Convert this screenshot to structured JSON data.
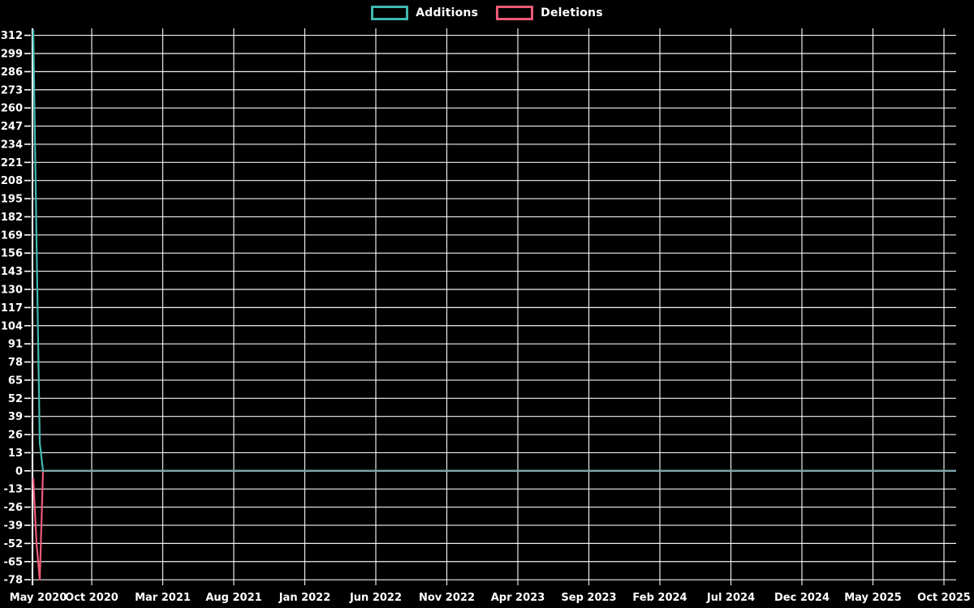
{
  "chart_data": {
    "type": "line",
    "title": "",
    "legend": [
      {
        "label": "Additions",
        "color": "#3FB8AF"
      },
      {
        "label": "Deletions",
        "color": "#ED5A77"
      }
    ],
    "x_axis": {
      "tick_labels": [
        "May 2020",
        "Oct 2020",
        "Mar 2021",
        "Aug 2021",
        "Jan 2022",
        "Jun 2022",
        "Nov 2022",
        "Apr 2023",
        "Sep 2023",
        "Feb 2024",
        "Jul 2024",
        "Dec 2024",
        "May 2025",
        "Oct 2025"
      ],
      "tick_interval_months": 5,
      "total_weeks": 285
    },
    "y_axis": {
      "tick_labels": [
        312,
        299,
        286,
        273,
        260,
        247,
        234,
        221,
        208,
        195,
        182,
        169,
        156,
        143,
        130,
        117,
        104,
        91,
        78,
        65,
        52,
        39,
        26,
        13,
        0,
        -13,
        -26,
        -39,
        -52,
        -65,
        -78
      ],
      "tick_step": 13,
      "ylim": [
        -78.5,
        317
      ]
    },
    "series": [
      {
        "name": "Additions",
        "color": "#3FB8AF",
        "points_weekly": [
          [
            0,
            316
          ],
          [
            1,
            165
          ],
          [
            2,
            20
          ],
          [
            3,
            0
          ]
        ],
        "tail_value": 0,
        "tail_note": "stays at 0 for every remaining week through Oct 2025"
      },
      {
        "name": "Deletions",
        "color": "#ED5A77",
        "points_weekly": [
          [
            0,
            -5
          ],
          [
            1,
            -52
          ],
          [
            2,
            -78
          ],
          [
            3,
            0
          ]
        ],
        "tail_value": 0,
        "tail_note": "stays at 0 for every remaining week through Oct 2025"
      }
    ],
    "colors": {
      "background": "#000000",
      "grid": "#FFFFFF",
      "text": "#FFFFFF",
      "zero_run_line": "#7FA6AB"
    },
    "grid": true,
    "legend_position": "top-center"
  }
}
